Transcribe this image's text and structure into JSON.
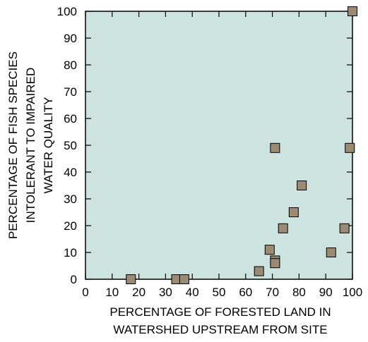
{
  "chart_data": {
    "type": "scatter",
    "title": "",
    "xlabel_lines": [
      "PERCENTAGE OF FORESTED LAND IN",
      "WATERSHED UPSTREAM FROM SITE"
    ],
    "ylabel_lines": [
      "PERCENTAGE OF FISH SPECIES",
      "INTOLERANT TO IMPAIRED",
      "WATER QUALITY"
    ],
    "xlim": [
      0,
      100
    ],
    "ylim": [
      0,
      100
    ],
    "x_ticks": [
      0,
      10,
      20,
      30,
      40,
      50,
      60,
      70,
      80,
      90,
      100
    ],
    "y_ticks": [
      0,
      10,
      20,
      30,
      40,
      50,
      60,
      70,
      80,
      90,
      100
    ],
    "grid": false,
    "plot_background": "#cce3df",
    "marker_color": "#9c8b74",
    "marker_edge": "#000000",
    "marker_shape": "square",
    "points": [
      {
        "x": 17,
        "y": 0
      },
      {
        "x": 34,
        "y": 0
      },
      {
        "x": 37,
        "y": 0
      },
      {
        "x": 65,
        "y": 3
      },
      {
        "x": 69,
        "y": 11
      },
      {
        "x": 71,
        "y": 7
      },
      {
        "x": 71,
        "y": 6
      },
      {
        "x": 71,
        "y": 49
      },
      {
        "x": 74,
        "y": 19
      },
      {
        "x": 78,
        "y": 25
      },
      {
        "x": 81,
        "y": 35
      },
      {
        "x": 92,
        "y": 10
      },
      {
        "x": 97,
        "y": 19
      },
      {
        "x": 99,
        "y": 49
      },
      {
        "x": 100,
        "y": 100
      }
    ]
  }
}
